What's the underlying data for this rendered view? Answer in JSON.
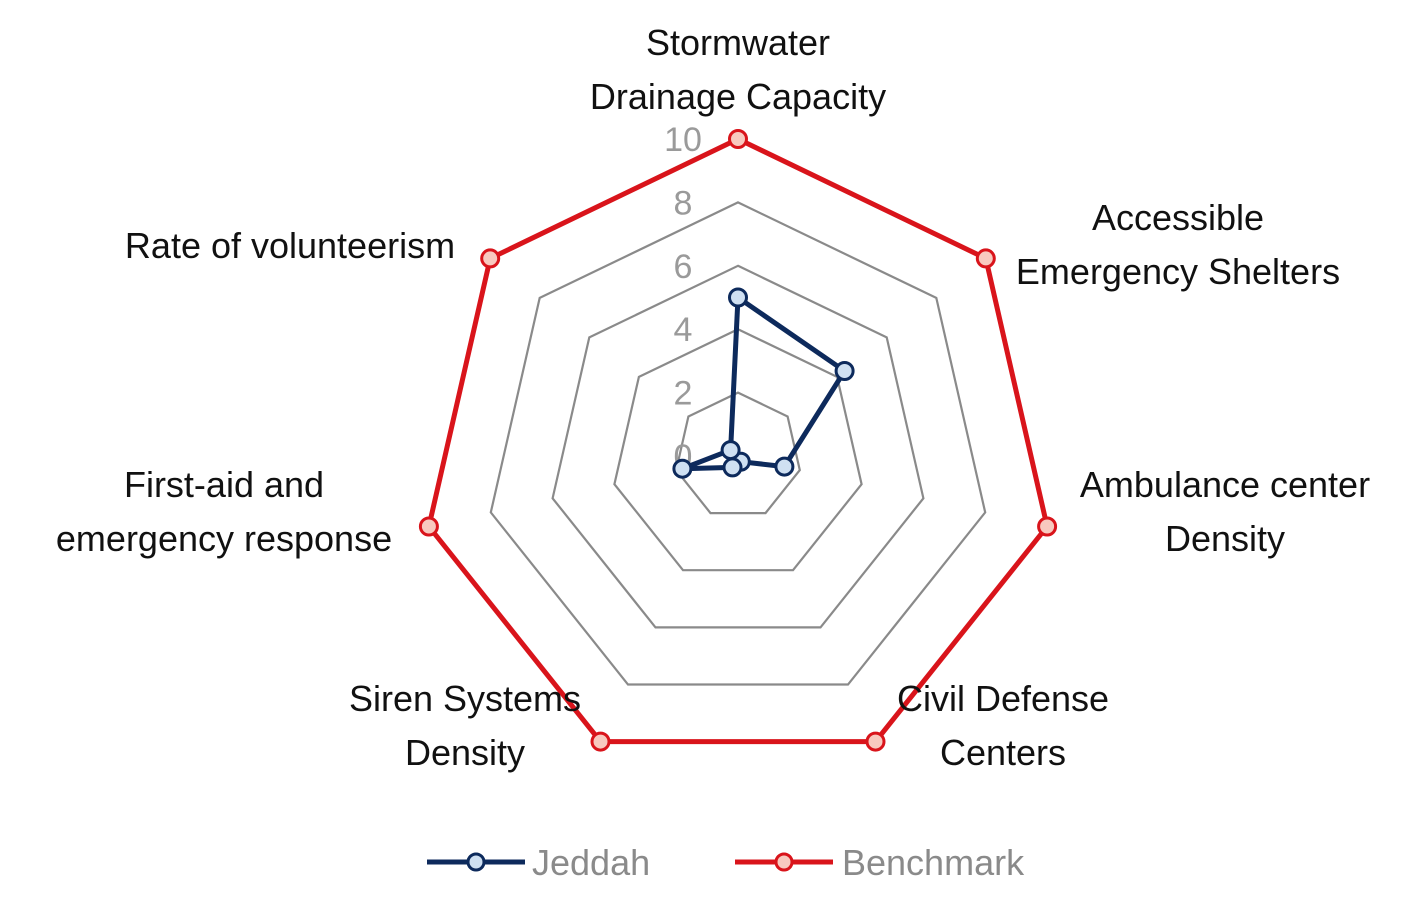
{
  "chart_data": {
    "type": "radar",
    "categories": [
      [
        "Stormwater",
        "Drainage Capacity"
      ],
      [
        "Accessible",
        "Emergency Shelters"
      ],
      [
        "Ambulance center",
        "Density"
      ],
      [
        "Civil Defense",
        "Centers"
      ],
      [
        "Siren Systems",
        "Density"
      ],
      [
        "First-aid and",
        "emergency response"
      ],
      [
        "Rate of volunteerism"
      ]
    ],
    "rlim": [
      0,
      10
    ],
    "ticks": [
      "0",
      "2",
      "4",
      "6",
      "8",
      "10"
    ],
    "tick_values": [
      0,
      2,
      4,
      6,
      8,
      10
    ],
    "grid": true,
    "legend_position": "bottom",
    "series": [
      {
        "name": "Jeddah",
        "color": "#0d2a5c",
        "marker_fill": "#cfe0f2",
        "values": [
          5.0,
          4.3,
          1.5,
          0.2,
          0.4,
          1.8,
          0.3
        ]
      },
      {
        "name": "Benchmark",
        "color": "#d9141b",
        "marker_fill": "#f8c9bf",
        "values": [
          10,
          10,
          10,
          10,
          10,
          10,
          10
        ]
      }
    ]
  }
}
